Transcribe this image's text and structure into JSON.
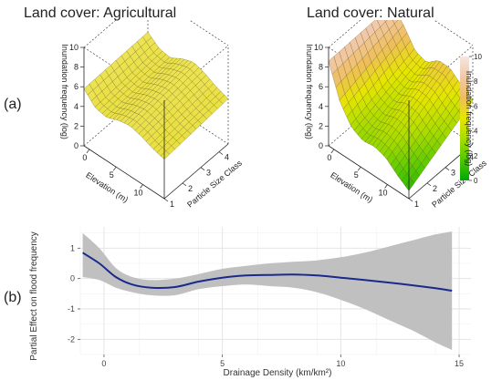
{
  "panels": {
    "a_label": "(a)",
    "b_label": "(b)"
  },
  "chart_data": [
    {
      "type": "surface3d",
      "title": "Land cover: Agricultural",
      "xlabel": "Elevation (m)",
      "ylabel": "Particle Size Class",
      "zlabel": "Inundation frequency (log)",
      "x_ticks": [
        0,
        5,
        10
      ],
      "y_ticks": [
        1,
        2,
        3,
        4
      ],
      "z_ticks": [
        0,
        2,
        4,
        6,
        8,
        10
      ],
      "zlim": [
        0,
        10
      ],
      "x_range": [
        -1,
        14
      ],
      "y_range": [
        1,
        4.5
      ],
      "front_edge_z": [
        5.8,
        4.6,
        4.4,
        4.9,
        5.1,
        4.8,
        4.3,
        4.0
      ],
      "back_edge_z": [
        6.0,
        5.1,
        4.9,
        5.6,
        6.0,
        5.6,
        5.0,
        4.6
      ]
    },
    {
      "type": "surface3d",
      "title": "Land cover: Natural",
      "xlabel": "Elevation (m)",
      "ylabel": "Particle Size Class",
      "zlabel": "Inundation frequency (log)",
      "x_ticks": [
        0,
        5,
        10
      ],
      "y_ticks": [
        1,
        2,
        3,
        4
      ],
      "z_ticks": [
        0,
        2,
        4,
        6,
        8,
        10
      ],
      "zlim": [
        0,
        10
      ],
      "x_range": [
        -1,
        14
      ],
      "y_range": [
        1,
        4.5
      ],
      "front_edge_z": [
        8.6,
        5.2,
        3.4,
        2.8,
        3.0,
        2.6,
        1.6,
        0.8
      ],
      "back_edge_z": [
        8.8,
        7.4,
        5.6,
        5.2,
        6.2,
        6.2,
        5.2,
        4.4
      ],
      "colorbar": {
        "label": "Inundation frequency (log)",
        "ticks": [
          0,
          2,
          4,
          6,
          8,
          10
        ],
        "colors": [
          "#00a800",
          "#50c800",
          "#a8dc00",
          "#e6e600",
          "#eebe5a",
          "#f0c8a8",
          "#f6e6e0"
        ]
      }
    },
    {
      "type": "line",
      "title": "",
      "xlabel": "Drainage Density (km/km²)",
      "ylabel": "Partial Effect on flood frequency",
      "xlim": [
        -1,
        15.5
      ],
      "ylim": [
        -2.5,
        1.7
      ],
      "x_ticks": [
        0,
        5,
        10,
        15
      ],
      "y_ticks": [
        -2,
        -1,
        0,
        1
      ],
      "grid": true,
      "x": [
        -0.9,
        -0.2,
        0.5,
        1.2,
        2.0,
        3.0,
        4.0,
        5.0,
        6.0,
        7.0,
        8.0,
        9.0,
        10.0,
        11.0,
        12.0,
        13.0,
        14.0,
        14.7
      ],
      "series": [
        {
          "role": "fit",
          "values": [
            0.85,
            0.5,
            0.05,
            -0.2,
            -0.3,
            -0.28,
            -0.1,
            0.03,
            0.1,
            0.12,
            0.13,
            0.1,
            0.03,
            -0.05,
            -0.13,
            -0.22,
            -0.32,
            -0.4
          ]
        },
        {
          "role": "upper",
          "values": [
            1.5,
            1.0,
            0.35,
            0.05,
            -0.05,
            0.0,
            0.15,
            0.32,
            0.42,
            0.5,
            0.55,
            0.6,
            0.7,
            0.85,
            1.05,
            1.25,
            1.45,
            1.55
          ]
        },
        {
          "role": "lower",
          "values": [
            0.05,
            -0.05,
            -0.3,
            -0.45,
            -0.55,
            -0.55,
            -0.35,
            -0.25,
            -0.2,
            -0.25,
            -0.3,
            -0.45,
            -0.7,
            -1.0,
            -1.35,
            -1.7,
            -2.1,
            -2.35
          ]
        }
      ],
      "line_color": "#1a2a8c",
      "band_color": "#bdbdbd"
    }
  ]
}
